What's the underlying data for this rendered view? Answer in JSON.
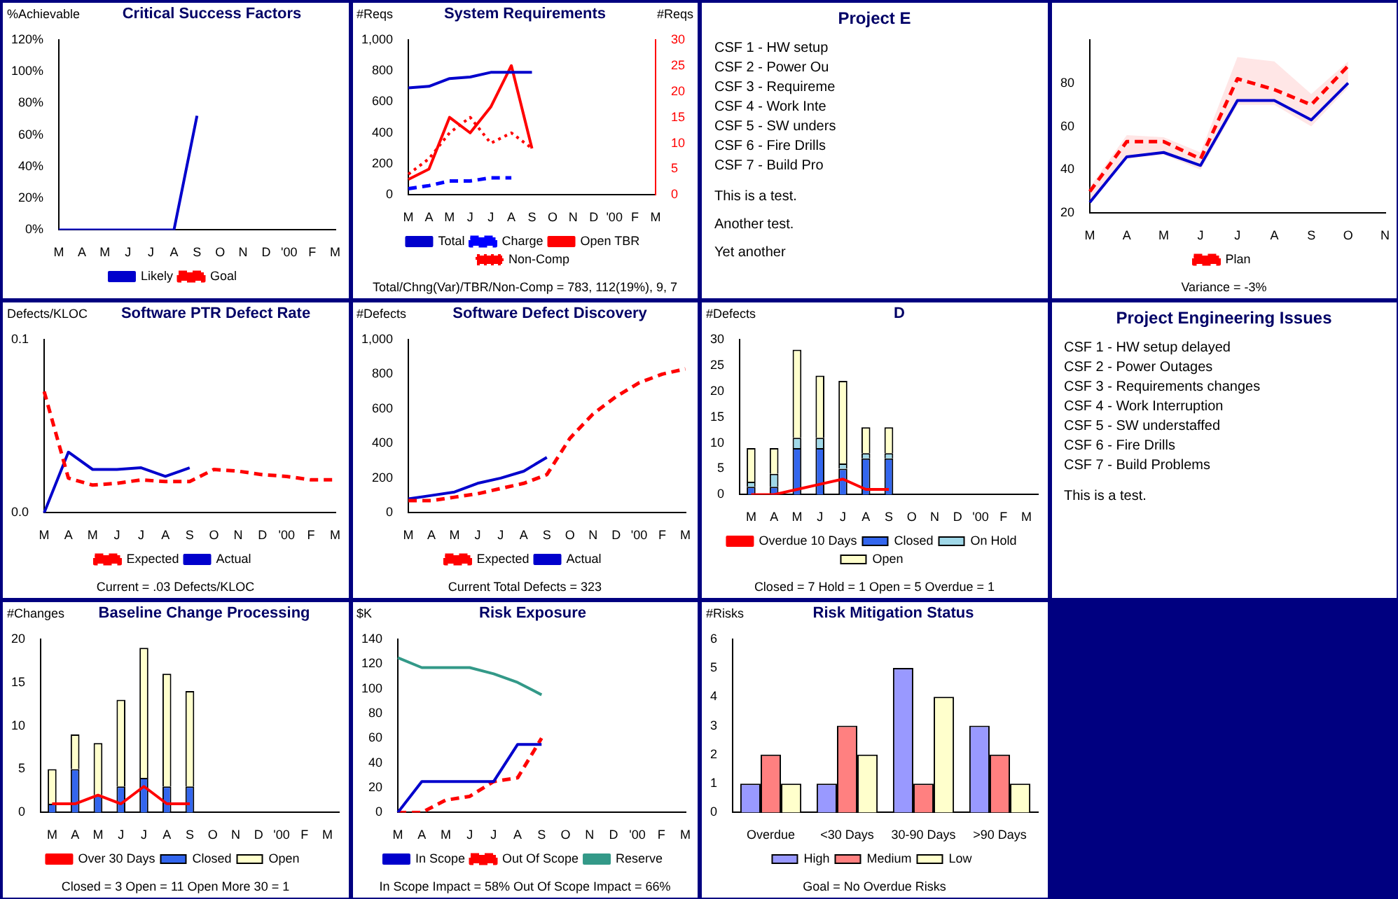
{
  "chart_data": [
    {
      "type": "line",
      "title": "Critical Success Factors",
      "ylabel": "%Achievable",
      "categories": [
        "M",
        "A",
        "M",
        "J",
        "J",
        "A",
        "S",
        "O",
        "N",
        "D",
        "'00",
        "F",
        "M"
      ],
      "series": [
        {
          "name": "Likely",
          "color": "#0000cc",
          "values": [
            0,
            0,
            0,
            0,
            0,
            0,
            72,
            null,
            null,
            null,
            null,
            null,
            null
          ]
        },
        {
          "name": "Goal",
          "color": "#ff0000",
          "line_style": "dashed",
          "values": [
            null,
            null,
            null,
            null,
            null,
            null,
            null,
            null,
            null,
            null,
            null,
            null,
            null
          ]
        }
      ],
      "ylim": [
        0,
        120
      ],
      "yticks": [
        {
          "value": 0,
          "label": "0%"
        },
        {
          "value": 20,
          "label": "20%"
        },
        {
          "value": 40,
          "label": "40%"
        },
        {
          "value": 60,
          "label": "60%"
        },
        {
          "value": 80,
          "label": "80%"
        },
        {
          "value": 100,
          "label": "100%"
        },
        {
          "value": 120,
          "label": "120%"
        }
      ],
      "grid": false,
      "legend": "bottom",
      "marker": "none"
    },
    {
      "type": "line",
      "title": "System Requirements",
      "ylabel": "#Reqs",
      "y2label": "#Reqs",
      "categories": [
        "M",
        "A",
        "M",
        "J",
        "J",
        "A",
        "S",
        "O",
        "N",
        "D",
        "'00",
        "F",
        "M"
      ],
      "series": [
        {
          "name": "Total",
          "color": "#0000cc",
          "values": [
            690,
            700,
            750,
            760,
            790,
            790,
            790,
            null,
            null,
            null,
            null,
            null,
            null
          ]
        },
        {
          "name": "Charge",
          "color": "#0000ff",
          "line_style": "dashed",
          "values": [
            40,
            60,
            90,
            90,
            110,
            110,
            null,
            null,
            null,
            null,
            null,
            null,
            null
          ]
        },
        {
          "name": "Open TBR",
          "color": "#ff0000",
          "axis": "y2",
          "values": [
            3,
            5,
            15,
            12,
            17,
            25,
            9,
            null,
            null,
            null,
            null,
            null,
            null
          ]
        },
        {
          "name": "Non-Comp",
          "color": "#ff0000",
          "axis": "y2",
          "line_style": "dotted",
          "values": [
            4,
            7,
            12,
            15,
            10,
            12,
            9,
            null,
            null,
            null,
            null,
            null,
            null
          ]
        }
      ],
      "ylim": [
        0,
        1000
      ],
      "yticks": [
        0,
        200,
        400,
        600,
        800,
        {
          "value": 1000,
          "label": "1,000"
        }
      ],
      "y2lim": [
        0,
        30
      ],
      "y2ticks": [
        0,
        5,
        10,
        15,
        20,
        25,
        30
      ],
      "annotations": [
        "Total/Chng(Var)/TBR/Non-Comp = 783, 112(19%), 9, 7"
      ],
      "grid": false,
      "legend": "bottom",
      "marker": "none"
    },
    {
      "type": "other",
      "title": "Project E",
      "annotations": [
        "CSF 1 - HW setup",
        "CSF 2 - Power Ou",
        "CSF 3 - Requireme",
        "CSF 4 - Work Inte",
        "CSF 5 - SW unders",
        "CSF 6 - Fire Drills",
        "CSF 7 - Build Pro",
        "This is a test.",
        "Another test.",
        "Yet another"
      ]
    },
    {
      "type": "line",
      "categories": [
        "M",
        "A",
        "M",
        "J",
        "J",
        "A",
        "S",
        "O",
        "N"
      ],
      "series": [
        {
          "name": "Plan",
          "color": "#ff0000",
          "line_style": "dashed",
          "values": [
            30,
            53,
            53,
            45,
            82,
            77,
            70,
            88,
            null
          ],
          "lower": [
            25,
            45,
            47,
            40,
            70,
            70,
            60,
            78,
            null
          ],
          "upper": [
            32,
            56,
            55,
            48,
            92,
            90,
            75,
            90,
            null
          ]
        },
        {
          "color": "#0000cc",
          "values": [
            25,
            46,
            48,
            42,
            72,
            72,
            63,
            80,
            null
          ]
        }
      ],
      "ylim": [
        20,
        100
      ],
      "yticks": [
        20,
        40,
        60,
        80
      ],
      "annotations": [
        "Variance = -3%"
      ],
      "grid": false,
      "legend": "bottom",
      "marker": "none"
    },
    {
      "type": "other",
      "title": "Project Engineering Issues",
      "annotations": [
        "CSF 1 - HW setup delayed",
        "CSF 2 - Power Outages",
        "CSF 3 - Requirements changes",
        "CSF 4 - Work Interruption",
        "CSF 5 - SW understaffed",
        "CSF 6 - Fire Drills",
        "CSF 7 - Build Problems",
        "This is a test."
      ]
    },
    {
      "type": "line",
      "title": "Software PTR Defect Rate",
      "ylabel": "Defects/KLOC",
      "categories": [
        "M",
        "A",
        "M",
        "J",
        "J",
        "A",
        "S",
        "O",
        "N",
        "D",
        "'00",
        "F",
        "M"
      ],
      "series": [
        {
          "name": "Expected",
          "color": "#ff0000",
          "line_style": "dashed",
          "values": [
            0.07,
            0.02,
            0.016,
            0.017,
            0.019,
            0.018,
            0.018,
            0.025,
            0.024,
            0.022,
            0.021,
            0.019,
            0.019
          ]
        },
        {
          "name": "Actual",
          "color": "#0000cc",
          "values": [
            0.0,
            0.035,
            0.025,
            0.025,
            0.026,
            0.021,
            0.026,
            null,
            null,
            null,
            null,
            null,
            null
          ]
        }
      ],
      "ylim": [
        0,
        0.1
      ],
      "yticks": [
        {
          "value": 0,
          "label": "0.0"
        },
        {
          "value": 0.1,
          "label": "0.1"
        }
      ],
      "annotations": [
        "Current = .03 Defects/KLOC"
      ],
      "grid": false,
      "legend": "bottom",
      "marker": "none"
    },
    {
      "type": "line",
      "title": "Software Defect Discovery",
      "ylabel": "#Defects",
      "categories": [
        "M",
        "A",
        "M",
        "J",
        "J",
        "A",
        "S",
        "O",
        "N",
        "D",
        "'00",
        "F",
        "M"
      ],
      "series": [
        {
          "name": "Expected",
          "color": "#ff0000",
          "line_style": "dashed",
          "values": [
            70,
            70,
            90,
            110,
            140,
            170,
            220,
            430,
            570,
            670,
            750,
            800,
            830
          ]
        },
        {
          "name": "Actual",
          "color": "#0000cc",
          "values": [
            80,
            100,
            120,
            170,
            200,
            240,
            320,
            null,
            null,
            null,
            null,
            null,
            null
          ]
        }
      ],
      "ylim": [
        0,
        1000
      ],
      "yticks": [
        0,
        200,
        400,
        600,
        800,
        {
          "value": 1000,
          "label": "1,000"
        }
      ],
      "annotations": [
        "Current Total Defects = 323"
      ],
      "grid": false,
      "legend": "bottom",
      "marker": "none"
    },
    {
      "type": "bar",
      "title": "D",
      "ylabel": "#Defects",
      "stacked": true,
      "categories": [
        "M",
        "A",
        "M",
        "J",
        "J",
        "A",
        "S",
        "O",
        "N",
        "D",
        "'00",
        "F",
        "M"
      ],
      "series": [
        {
          "name": "Closed",
          "color": "#3366ee",
          "values": [
            1.5,
            1.5,
            9,
            9,
            5,
            7,
            7,
            null,
            null,
            null,
            null,
            null,
            null
          ]
        },
        {
          "name": "On Hold",
          "color": "#a0d8e8",
          "values": [
            1,
            2.5,
            2,
            2,
            1,
            1,
            1,
            null,
            null,
            null,
            null,
            null,
            null
          ]
        },
        {
          "name": "Open",
          "color": "#ffffcc",
          "values": [
            6.5,
            5,
            17,
            12,
            16,
            5,
            5,
            null,
            null,
            null,
            null,
            null,
            null
          ]
        },
        {
          "name": "Overdue 10 Days",
          "type": "line",
          "color": "#ff0000",
          "values": [
            0,
            0,
            1,
            2,
            3,
            1,
            1,
            null,
            null,
            null,
            null,
            null,
            null
          ]
        }
      ],
      "ylim": [
        0,
        30
      ],
      "yticks": [
        0,
        5,
        10,
        15,
        20,
        25,
        30
      ],
      "annotations": [
        "Closed = 7    Hold = 1    Open = 5    Overdue = 1"
      ],
      "grid": false,
      "legend": "bottom",
      "marker": "none"
    },
    {
      "type": "bar",
      "title": "Baseline Change Processing",
      "ylabel": "#Changes",
      "stacked": true,
      "categories": [
        "M",
        "A",
        "M",
        "J",
        "J",
        "A",
        "S",
        "O",
        "N",
        "D",
        "'00",
        "F",
        "M"
      ],
      "series": [
        {
          "name": "Closed",
          "color": "#3366ee",
          "values": [
            1,
            5,
            2,
            3,
            4,
            3,
            3,
            null,
            null,
            null,
            null,
            null,
            null
          ]
        },
        {
          "name": "Open",
          "color": "#ffffcc",
          "values": [
            4,
            4,
            6,
            10,
            15,
            13,
            11,
            null,
            null,
            null,
            null,
            null,
            null
          ]
        },
        {
          "name": "Over 30 Days",
          "type": "line",
          "color": "#ff0000",
          "values": [
            1,
            1,
            2,
            1,
            3,
            1,
            1,
            null,
            null,
            null,
            null,
            null,
            null
          ]
        }
      ],
      "ylim": [
        0,
        20
      ],
      "yticks": [
        0,
        5,
        10,
        15,
        20
      ],
      "annotations": [
        "Closed = 3    Open = 11    Open More 30 = 1"
      ],
      "grid": false,
      "legend": "bottom",
      "marker": "none"
    },
    {
      "type": "line",
      "title": "Risk Exposure",
      "ylabel": "$K",
      "categories": [
        "M",
        "A",
        "M",
        "J",
        "J",
        "A",
        "S",
        "O",
        "N",
        "D",
        "'00",
        "F",
        "M"
      ],
      "series": [
        {
          "name": "In Scope",
          "color": "#0000cc",
          "values": [
            0,
            25,
            25,
            25,
            25,
            55,
            55,
            null,
            null,
            null,
            null,
            null,
            null
          ]
        },
        {
          "name": "Out Of Scope",
          "color": "#ff0000",
          "line_style": "dashed",
          "values": [
            0,
            0,
            10,
            13,
            25,
            28,
            60,
            null,
            null,
            null,
            null,
            null,
            null
          ]
        },
        {
          "name": "Reserve",
          "color": "#339988",
          "values": [
            125,
            117,
            117,
            117,
            112,
            105,
            95,
            null,
            null,
            null,
            null,
            null,
            null
          ]
        }
      ],
      "ylim": [
        0,
        140
      ],
      "yticks": [
        0,
        20,
        40,
        60,
        80,
        100,
        120,
        140
      ],
      "annotations": [
        "In Scope Impact = 58%    Out Of Scope Impact = 66%"
      ],
      "grid": false,
      "legend": "bottom",
      "marker": "none"
    },
    {
      "type": "bar",
      "title": "Risk Mitigation Status",
      "ylabel": "#Risks",
      "categories": [
        "Overdue",
        "<30 Days",
        "30-90 Days",
        ">90 Days"
      ],
      "series": [
        {
          "name": "High",
          "color": "#9999ff",
          "values": [
            1,
            1,
            5,
            3
          ]
        },
        {
          "name": "Medium",
          "color": "#ff8080",
          "values": [
            2,
            3,
            1,
            2
          ]
        },
        {
          "name": "Low",
          "color": "#ffffcc",
          "values": [
            1,
            2,
            4,
            1
          ]
        }
      ],
      "ylim": [
        0,
        6
      ],
      "yticks": [
        0,
        1,
        2,
        3,
        4,
        5,
        6
      ],
      "annotations": [
        "Goal = No Overdue Risks"
      ],
      "grid": false,
      "legend": "bottom"
    }
  ]
}
